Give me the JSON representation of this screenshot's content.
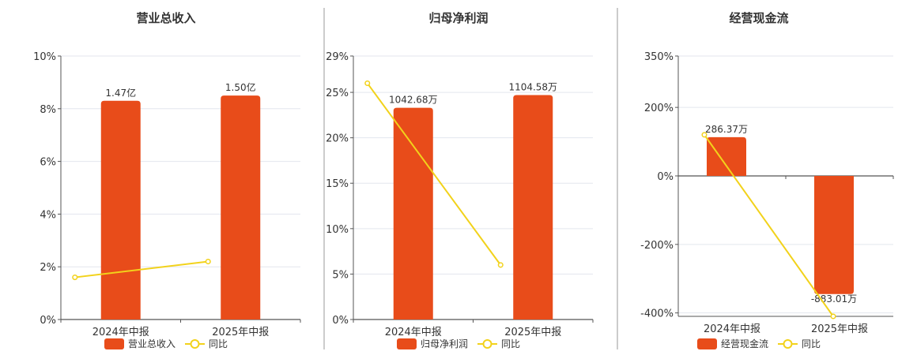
{
  "colors": {
    "bar": "#E84C1A",
    "line": "#F2D21B",
    "grid": "#E3E6EE",
    "axis": "#555555",
    "divider": "#999999"
  },
  "chart_data": [
    {
      "type": "bar",
      "title": "营业总收入",
      "categories": [
        "2024年中报",
        "2025年中报"
      ],
      "series": [
        {
          "name": "营业总收入",
          "type": "bar",
          "values": [
            8.3,
            8.5
          ],
          "labels": [
            "1.47亿",
            "1.50亿"
          ]
        },
        {
          "name": "同比",
          "type": "line",
          "values": [
            1.6,
            2.2
          ]
        }
      ],
      "yticks": [
        "0%",
        "2%",
        "4%",
        "6%",
        "8%",
        "10%"
      ],
      "ylim": [
        0,
        10
      ]
    },
    {
      "type": "bar",
      "title": "归母净利润",
      "categories": [
        "2024年中报",
        "2025年中报"
      ],
      "series": [
        {
          "name": "归母净利润",
          "type": "bar",
          "values": [
            23.3,
            24.7
          ],
          "labels": [
            "1042.68万",
            "1104.58万"
          ]
        },
        {
          "name": "同比",
          "type": "line",
          "values": [
            26,
            6
          ]
        }
      ],
      "yticks": [
        "0%",
        "5%",
        "10%",
        "15%",
        "20%",
        "25%",
        "29%"
      ],
      "ytick_values": [
        0,
        5,
        10,
        15,
        20,
        25,
        29
      ],
      "ylim": [
        0,
        29
      ]
    },
    {
      "type": "bar",
      "title": "经营现金流",
      "categories": [
        "2024年中报",
        "2025年中报"
      ],
      "series": [
        {
          "name": "经营现金流",
          "type": "bar",
          "values": [
            113,
            -345
          ],
          "labels": [
            "286.37万",
            "-883.01万"
          ]
        },
        {
          "name": "同比",
          "type": "line",
          "values": [
            120,
            -410
          ]
        }
      ],
      "yticks": [
        "-400%",
        "-200%",
        "0%",
        "200%",
        "350%"
      ],
      "ytick_values": [
        -400,
        -200,
        0,
        200,
        350
      ],
      "ylim": [
        -410,
        350
      ]
    }
  ]
}
